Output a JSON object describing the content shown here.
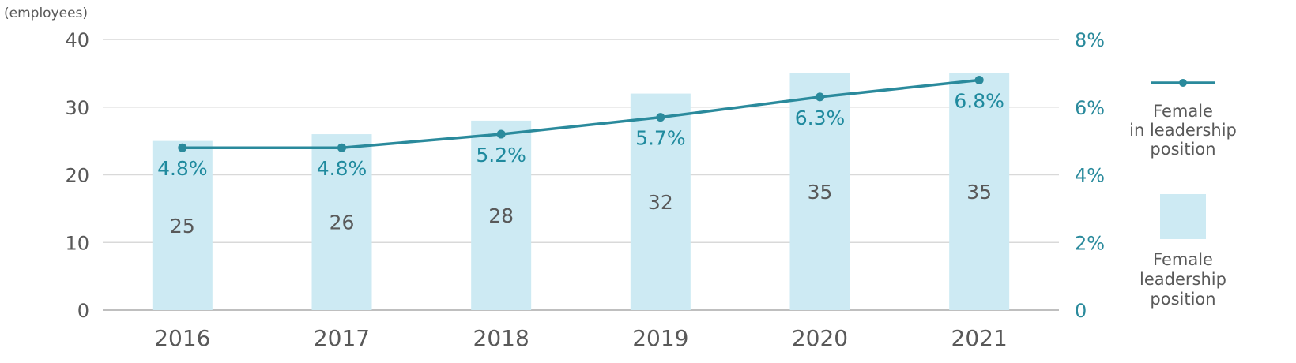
{
  "chart_data": {
    "type": "bar+line",
    "categories": [
      "2016",
      "2017",
      "2018",
      "2019",
      "2020",
      "2021"
    ],
    "y_unit": "(employees)",
    "ylim": [
      0,
      40
    ],
    "y_ticks": [
      "0",
      "10",
      "20",
      "30",
      "40"
    ],
    "y2lim": [
      0,
      8
    ],
    "y2_ticks": [
      "0",
      "2%",
      "4%",
      "6%",
      "8%"
    ],
    "grid": true,
    "legend_position": "right",
    "series": [
      {
        "name": "Female leadership position",
        "type": "bar",
        "values": [
          25,
          26,
          28,
          32,
          35,
          35
        ],
        "labels": [
          "25",
          "26",
          "28",
          "32",
          "35",
          "35"
        ],
        "axis": "left"
      },
      {
        "name": "Female in leadership position",
        "type": "line",
        "values": [
          4.8,
          4.8,
          5.2,
          5.7,
          6.3,
          6.8
        ],
        "labels": [
          "4.8%",
          "4.8%",
          "5.2%",
          "5.7%",
          "6.3%",
          "6.8%"
        ],
        "axis": "right"
      }
    ],
    "legend": {
      "line_label_lines": [
        "Female",
        "in leadership",
        "position"
      ],
      "bar_label_lines": [
        "Female",
        "leadership",
        "position"
      ]
    },
    "colors": {
      "bar": "#cdeaf3",
      "line": "#2a8a9c",
      "grid": "#d9d9d9",
      "axis_text_left": "#595959",
      "axis_text_right": "#2a8a9c"
    }
  }
}
